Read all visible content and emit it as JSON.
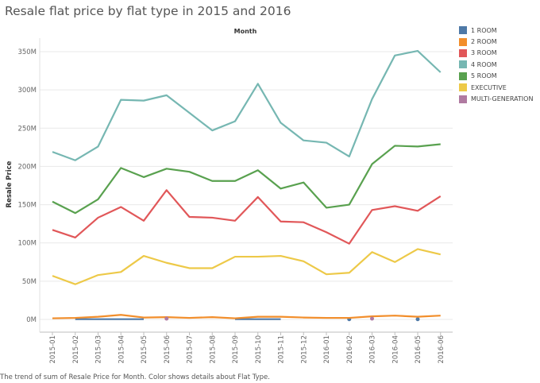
{
  "title": "Resale flat price by flat type in 2015 and 2016",
  "caption": "The trend of sum of Resale Price for Month.  Color shows details about Flat Type.",
  "chart_data": {
    "type": "line",
    "title": "Resale flat price by flat type in 2015 and 2016",
    "xlabel": "Month",
    "ylabel": "Resale Price",
    "ylim": [
      0,
      360
    ],
    "yticks": [
      0,
      50,
      100,
      150,
      200,
      250,
      300,
      350
    ],
    "ytick_labels": [
      "0M",
      "50M",
      "100M",
      "150M",
      "200M",
      "250M",
      "300M",
      "350M"
    ],
    "grid": "horizontal",
    "legend_position": "right",
    "categories": [
      "2015-01",
      "2015-02",
      "2015-03",
      "2015-04",
      "2015-05",
      "2015-06",
      "2015-07",
      "2015-08",
      "2015-09",
      "2015-10",
      "2015-11",
      "2015-12",
      "2016-01",
      "2016-02",
      "2016-03",
      "2016-04",
      "2016-05",
      "2016-06"
    ],
    "series": [
      {
        "name": "1 ROOM",
        "color": "#4e79a7",
        "values": [
          null,
          0.3,
          0.3,
          0.3,
          0.3,
          null,
          null,
          null,
          0.3,
          0.3,
          0.3,
          null,
          null,
          0.3,
          null,
          null,
          0.3,
          null
        ]
      },
      {
        "name": "2 ROOM",
        "color": "#f28e2b",
        "values": [
          1.5,
          2,
          3.5,
          6,
          2.5,
          3,
          2,
          3,
          1.5,
          3.5,
          3.5,
          2.5,
          2,
          2,
          4,
          5,
          3.5,
          5
        ]
      },
      {
        "name": "3 ROOM",
        "color": "#e15759",
        "values": [
          117,
          107,
          133,
          147,
          129,
          169,
          134,
          133,
          129,
          160,
          128,
          127,
          114,
          99,
          143,
          148,
          142,
          161
        ]
      },
      {
        "name": "4 ROOM",
        "color": "#76b7b2",
        "values": [
          219,
          208,
          226,
          287,
          286,
          293,
          270,
          247,
          259,
          308,
          257,
          234,
          231,
          213,
          288,
          345,
          351,
          323
        ]
      },
      {
        "name": "5 ROOM",
        "color": "#59a14f",
        "values": [
          154,
          139,
          157,
          198,
          186,
          197,
          193,
          181,
          181,
          195,
          171,
          179,
          146,
          150,
          203,
          227,
          226,
          229
        ]
      },
      {
        "name": "EXECUTIVE",
        "color": "#edc948",
        "values": [
          57,
          46,
          58,
          62,
          83,
          74,
          67,
          67,
          82,
          82,
          83,
          76,
          59,
          61,
          88,
          75,
          92,
          85
        ]
      },
      {
        "name": "MULTI-GENERATION",
        "color": "#b07aa1",
        "values": [
          null,
          null,
          null,
          null,
          null,
          1,
          null,
          null,
          null,
          null,
          null,
          null,
          null,
          null,
          1,
          null,
          null,
          null
        ]
      }
    ]
  }
}
